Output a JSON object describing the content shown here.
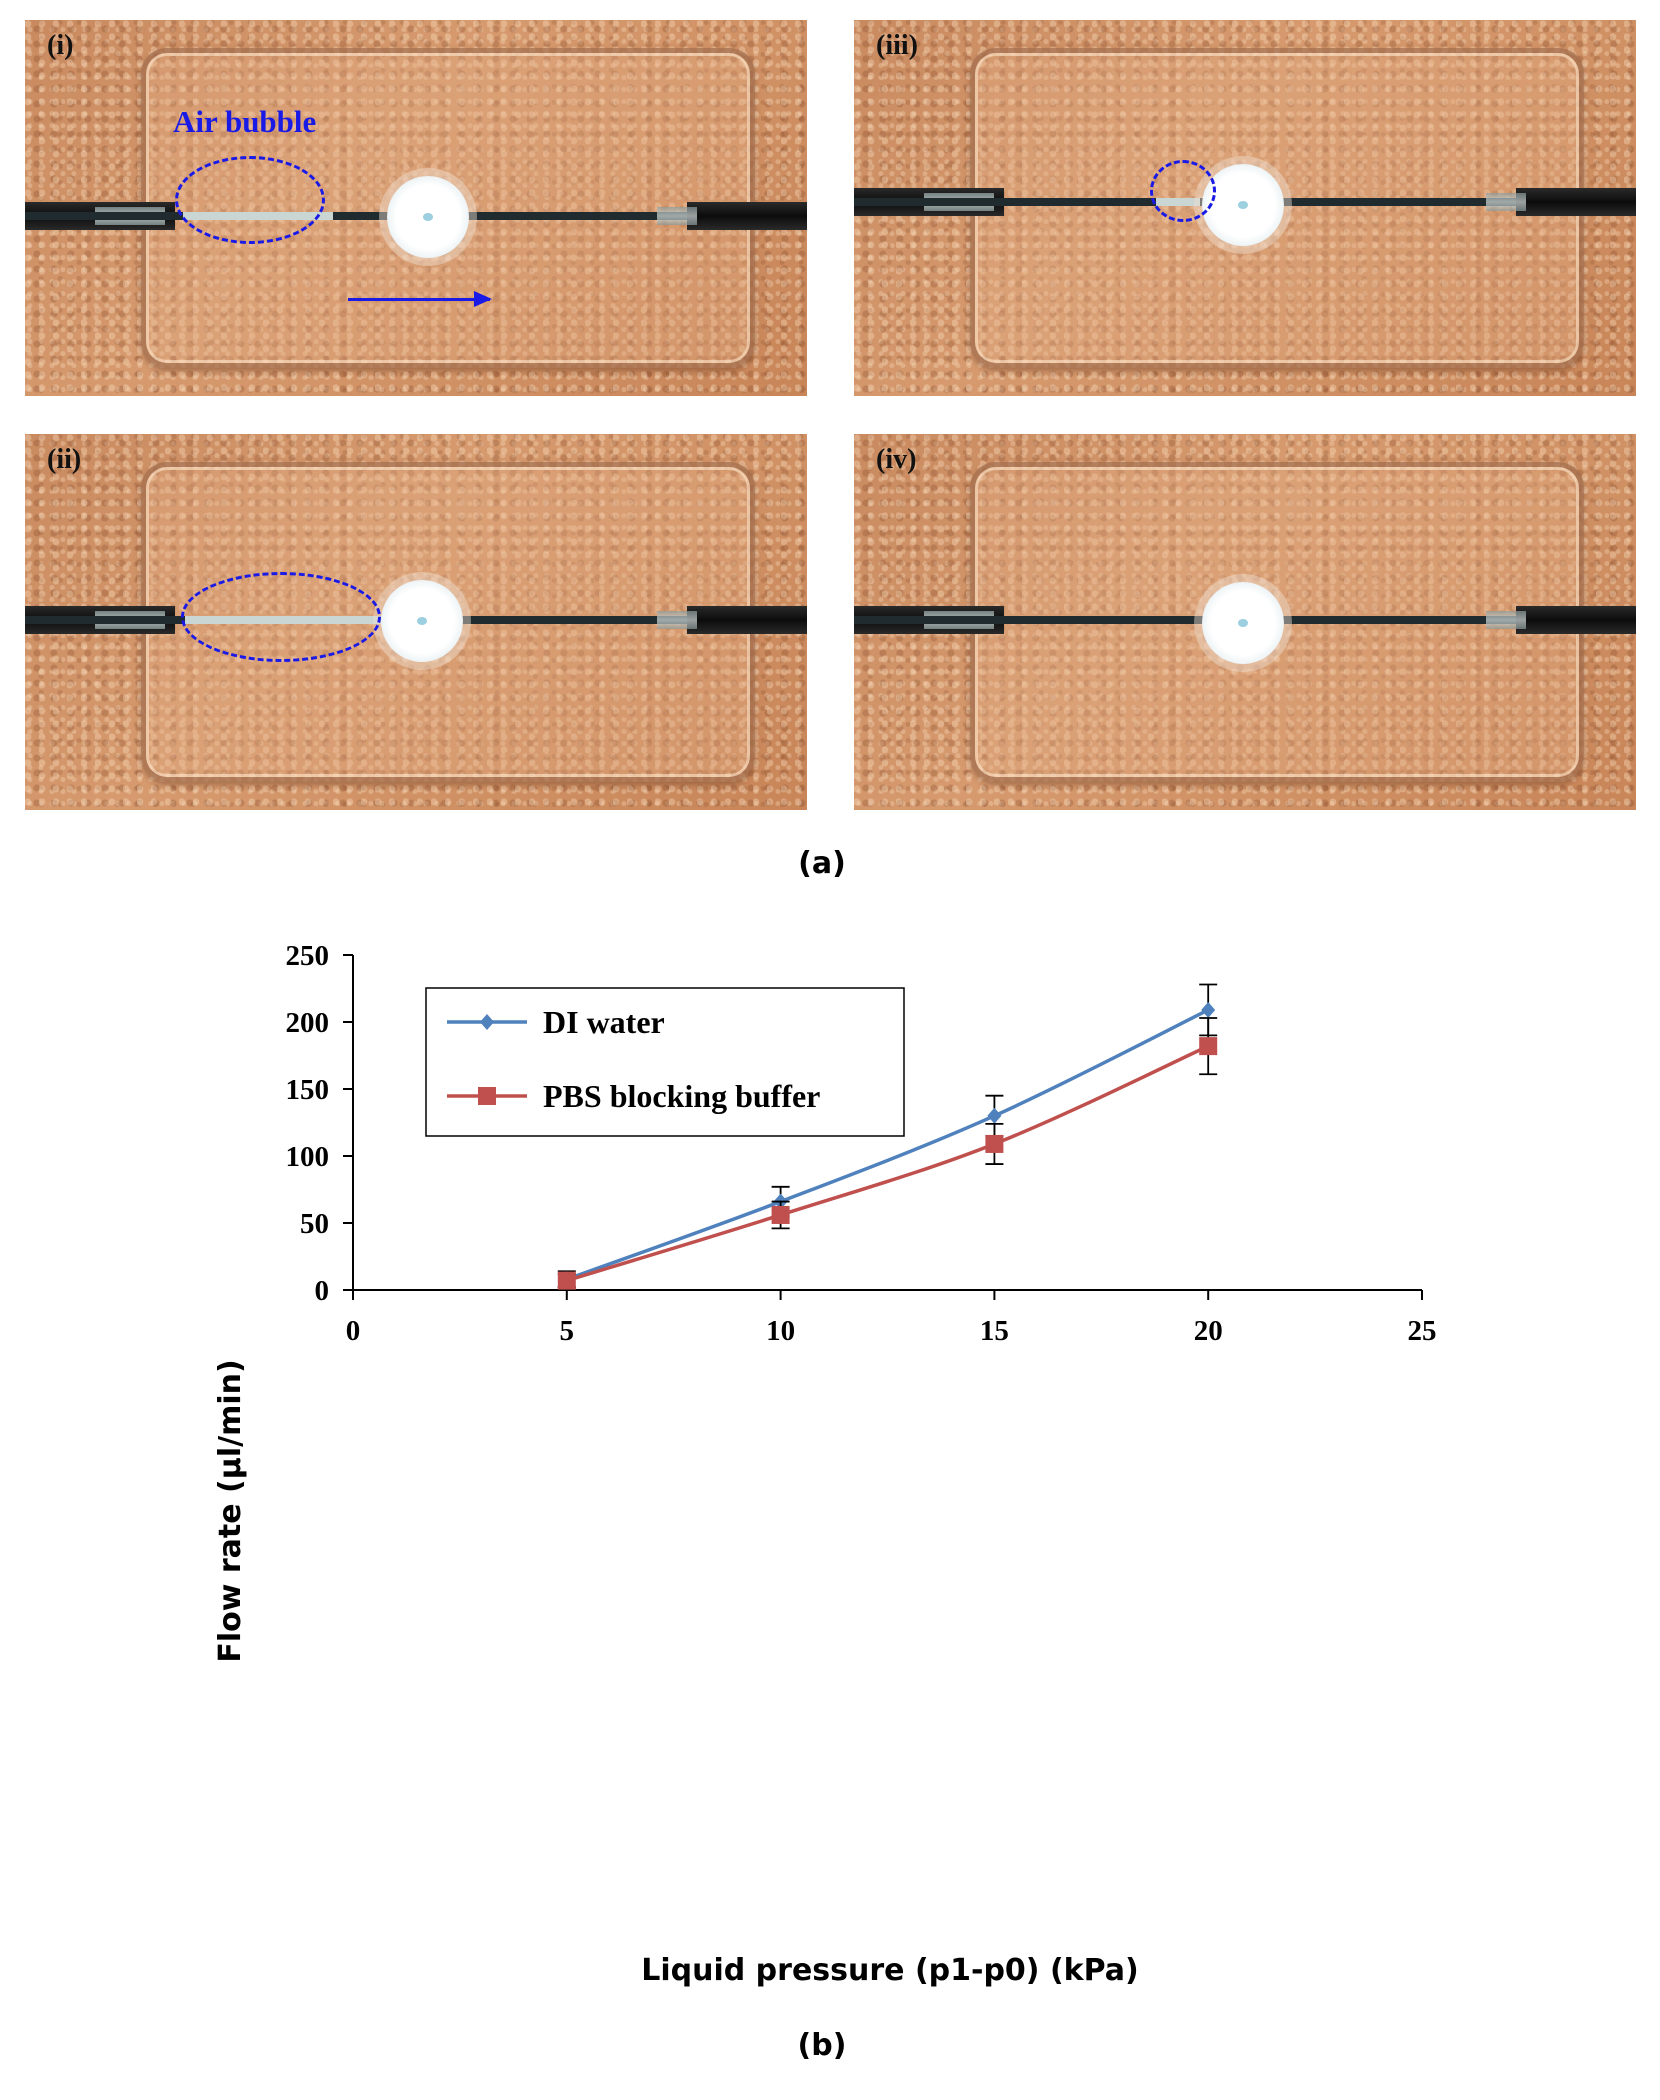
{
  "panel_a": {
    "caption": "(a)",
    "photos": [
      {
        "label": "(i)"
      },
      {
        "label": "(ii)"
      },
      {
        "label": "(iii)"
      },
      {
        "label": "(iv)"
      }
    ],
    "annotation": "Air bubble",
    "annotation_color": "#1a1ae6"
  },
  "panel_b": {
    "caption": "(b)"
  },
  "chart_data": {
    "type": "line",
    "xlabel": "Liquid pressure (p1-p0) (kPa)",
    "ylabel": "Flow rate (µl/min)",
    "xlim": [
      0,
      25
    ],
    "ylim": [
      0,
      250
    ],
    "xticks": [
      0,
      5,
      10,
      15,
      20,
      25
    ],
    "yticks": [
      0,
      50,
      100,
      150,
      200,
      250
    ],
    "grid": false,
    "legend_position": "top-left",
    "series": [
      {
        "name": "DI water",
        "color": "#4f81bd",
        "marker": "diamond",
        "x": [
          5,
          10,
          15,
          20
        ],
        "y": [
          8,
          66,
          130,
          209
        ],
        "error": [
          6,
          11,
          15,
          19
        ]
      },
      {
        "name": "PBS blocking buffer",
        "color": "#c0504d",
        "marker": "square",
        "x": [
          5,
          10,
          15,
          20
        ],
        "y": [
          7,
          56,
          109,
          182
        ],
        "error": [
          5,
          10,
          15,
          21
        ]
      }
    ]
  }
}
